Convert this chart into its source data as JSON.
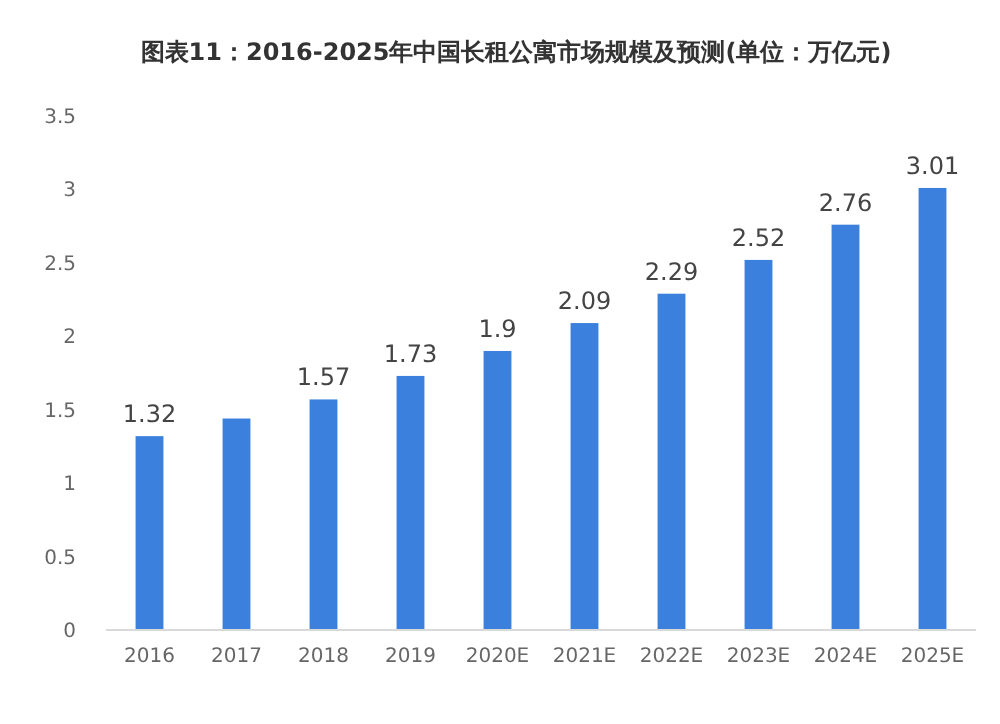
{
  "chart_data": {
    "type": "bar",
    "title": "图表11：2016-2025年中国长租公寓市场规模及预测(单位：万亿元)",
    "categories": [
      "2016",
      "2017",
      "2018",
      "2019",
      "2020E",
      "2021E",
      "2022E",
      "2023E",
      "2024E",
      "2025E"
    ],
    "values": [
      1.32,
      1.44,
      1.57,
      1.73,
      1.9,
      2.09,
      2.29,
      2.52,
      2.76,
      3.01
    ],
    "value_labels": [
      "1.32",
      null,
      "1.57",
      "1.73",
      "1.9",
      "2.09",
      "2.29",
      "2.52",
      "2.76",
      "3.01"
    ],
    "color": "#3a80dc",
    "ylim": [
      0,
      3.5
    ],
    "yticks": [
      0,
      0.5,
      1,
      1.5,
      2,
      2.5,
      3,
      3.5
    ],
    "grid": false
  }
}
